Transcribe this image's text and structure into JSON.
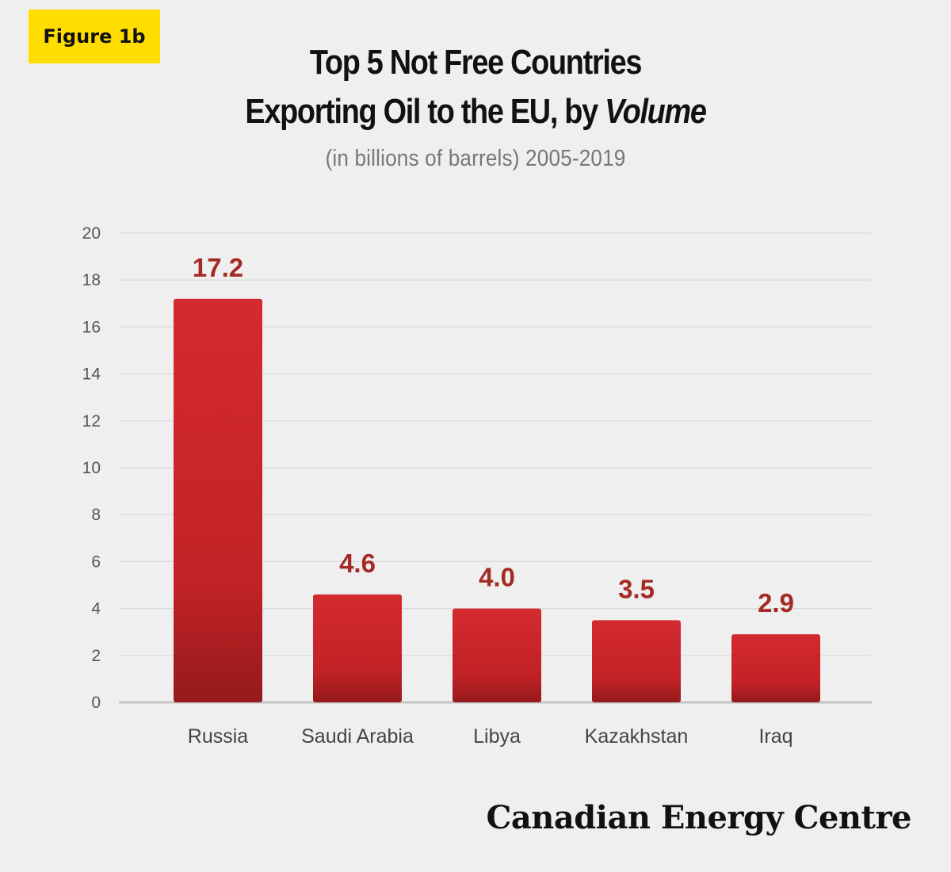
{
  "badge": {
    "label": "Figure 1b"
  },
  "header": {
    "title_line1": "Top 5 Not Free Countries",
    "title_line2_prefix": "Exporting Oil to the EU, by ",
    "title_line2_emphasis": "Volume",
    "subtitle": "(in billions of barrels) 2005-2019"
  },
  "footer": {
    "brand": "Canadian Energy Centre"
  },
  "colors": {
    "bar_top": "#d42a2f",
    "bar_bottom": "#951a1b",
    "value_label": "#a52a24",
    "badge": "#ffdd00",
    "background": "#efefef"
  },
  "chart_data": {
    "type": "bar",
    "title": "Top 5 Not Free Countries Exporting Oil to the EU, by Volume",
    "subtitle": "(in billions of barrels) 2005-2019",
    "categories": [
      "Russia",
      "Saudi Arabia",
      "Libya",
      "Kazakhstan",
      "Iraq"
    ],
    "values": [
      17.2,
      4.6,
      4.0,
      3.5,
      2.9
    ],
    "value_labels": [
      "17.2",
      "4.6",
      "4.0",
      "3.5",
      "2.9"
    ],
    "xlabel": "",
    "ylabel": "",
    "ylim": [
      0,
      20
    ],
    "yticks": [
      0,
      2,
      4,
      6,
      8,
      10,
      12,
      14,
      16,
      18,
      20
    ],
    "grid": true,
    "legend": "none"
  }
}
